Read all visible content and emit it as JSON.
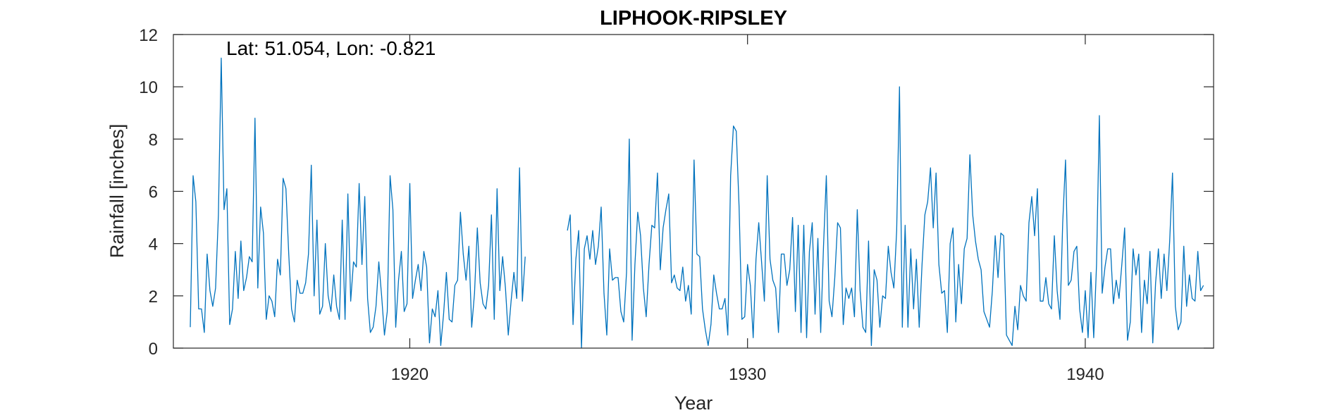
{
  "chart_data": {
    "type": "line",
    "title": "LIPHOOK-RIPSLEY",
    "xlabel": "Year",
    "ylabel": "Rainfall [inches]",
    "annotation": "Lat: 51.054, Lon: -0.821",
    "xlim": [
      1913.0,
      1943.8
    ],
    "ylim": [
      0,
      12
    ],
    "x_ticks": [
      1920,
      1930,
      1940
    ],
    "y_ticks": [
      0,
      2,
      4,
      6,
      8,
      10,
      12
    ],
    "grid": false,
    "legend": "none",
    "box": true,
    "series": [
      {
        "color": "#0072BD",
        "start_year": 1913.5,
        "step_years": 0.0833333,
        "values": [
          0.8,
          6.6,
          5.6,
          1.5,
          1.5,
          0.6,
          3.6,
          2.2,
          1.6,
          2.3,
          5.1,
          11.1,
          5.3,
          6.1,
          0.9,
          1.5,
          3.7,
          1.9,
          4.1,
          2.2,
          2.7,
          3.5,
          3.3,
          8.8,
          2.3,
          5.4,
          4.4,
          1.1,
          2.0,
          1.8,
          1.2,
          3.4,
          2.8,
          6.5,
          6.1,
          3.6,
          1.5,
          1.0,
          2.6,
          2.1,
          2.1,
          2.5,
          3.6,
          7.0,
          2.0,
          4.9,
          1.3,
          1.6,
          4.0,
          2.0,
          1.4,
          2.8,
          1.6,
          1.1,
          4.9,
          1.1,
          5.9,
          1.8,
          3.3,
          3.1,
          6.3,
          3.2,
          5.8,
          1.9,
          0.6,
          0.8,
          1.6,
          3.3,
          2.0,
          0.5,
          1.4,
          6.6,
          5.3,
          0.8,
          2.6,
          3.7,
          1.4,
          1.7,
          6.3,
          1.9,
          2.6,
          3.2,
          2.2,
          3.7,
          3.1,
          0.2,
          1.5,
          1.2,
          2.2,
          0.1,
          1.3,
          2.9,
          1.1,
          1.0,
          2.4,
          2.6,
          5.2,
          3.6,
          2.6,
          3.9,
          0.8,
          2.1,
          4.6,
          2.5,
          1.7,
          1.5,
          2.4,
          5.1,
          1.1,
          6.1,
          2.2,
          3.5,
          2.3,
          0.5,
          1.8,
          2.9,
          1.9,
          6.9,
          1.8,
          3.5,
          null,
          null,
          null,
          null,
          null,
          null,
          null,
          null,
          null,
          null,
          null,
          null,
          null,
          null,
          4.5,
          5.1,
          0.9,
          3.4,
          4.5,
          0.0,
          3.8,
          4.3,
          3.4,
          4.5,
          3.2,
          3.9,
          5.4,
          2.1,
          0.5,
          3.8,
          2.6,
          2.7,
          2.7,
          1.4,
          1.0,
          2.9,
          8.0,
          0.3,
          3.2,
          5.2,
          4.3,
          2.3,
          1.2,
          3.2,
          4.7,
          4.6,
          6.7,
          3.0,
          4.6,
          5.3,
          5.9,
          2.5,
          2.8,
          2.3,
          2.2,
          3.1,
          1.8,
          2.4,
          1.3,
          7.2,
          3.6,
          3.5,
          1.5,
          0.7,
          0.1,
          0.9,
          2.8,
          2.1,
          1.5,
          1.5,
          1.9,
          0.5,
          6.6,
          8.5,
          8.3,
          5.4,
          1.1,
          1.2,
          3.2,
          2.4,
          0.4,
          3.4,
          4.8,
          3.3,
          1.8,
          6.6,
          3.4,
          2.6,
          2.3,
          0.6,
          3.6,
          3.6,
          2.4,
          3.0,
          5.0,
          1.4,
          4.7,
          0.6,
          4.7,
          0.4,
          3.7,
          4.8,
          1.3,
          4.2,
          0.6,
          3.9,
          6.6,
          1.8,
          1.2,
          2.7,
          4.8,
          4.6,
          0.9,
          2.3,
          1.9,
          2.3,
          1.2,
          5.3,
          2.2,
          0.8,
          0.6,
          4.1,
          0.1,
          3.0,
          2.6,
          0.8,
          2.0,
          1.9,
          3.9,
          2.9,
          2.3,
          4.5,
          10.0,
          0.8,
          4.7,
          0.8,
          3.8,
          1.5,
          3.4,
          0.8,
          3.2,
          5.1,
          5.6,
          6.9,
          4.6,
          6.7,
          3.2,
          2.1,
          2.2,
          0.6,
          4.0,
          4.6,
          1.0,
          3.2,
          1.7,
          3.8,
          4.2,
          7.4,
          5.1,
          4.1,
          3.4,
          3.0,
          1.4,
          1.1,
          0.8,
          2.2,
          4.3,
          2.7,
          4.4,
          4.3,
          0.5,
          0.3,
          0.1,
          1.6,
          0.7,
          2.4,
          2.0,
          1.8,
          4.8,
          5.8,
          4.3,
          6.1,
          1.8,
          1.8,
          2.7,
          1.7,
          1.5,
          4.3,
          2.2,
          1.1,
          4.8,
          7.2,
          2.4,
          2.6,
          3.7,
          3.9,
          1.5,
          0.6,
          2.2,
          0.4,
          2.9,
          0.4,
          3.2,
          8.9,
          2.1,
          3.1,
          3.8,
          3.8,
          1.7,
          2.6,
          1.9,
          3.2,
          4.6,
          0.3,
          1.0,
          3.8,
          2.8,
          3.6,
          0.6,
          2.6,
          1.7,
          3.7,
          0.2,
          2.5,
          3.8,
          1.9,
          3.6,
          2.2,
          4.1,
          6.7,
          1.6,
          0.7,
          1.0,
          3.9,
          1.6,
          2.8,
          1.9,
          1.8,
          3.7,
          2.2,
          2.4
        ]
      }
    ]
  }
}
